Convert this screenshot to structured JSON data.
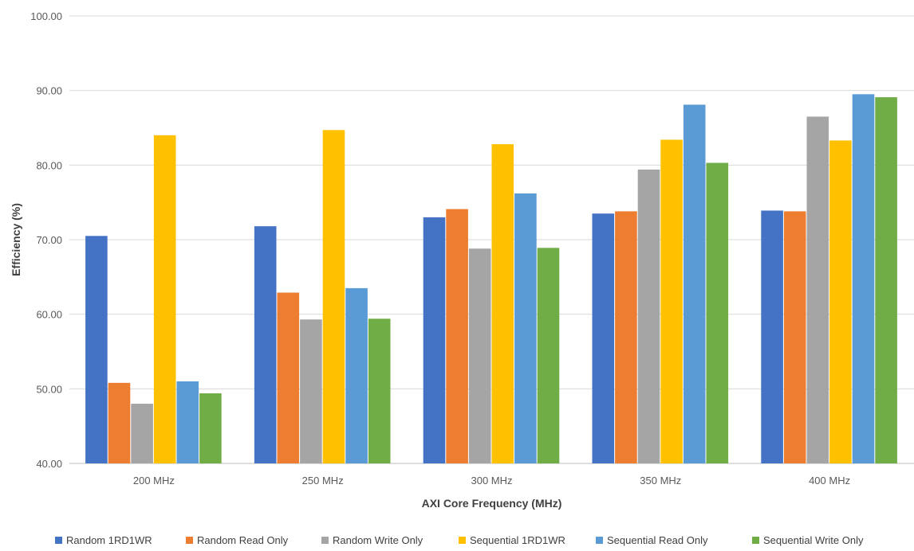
{
  "chart_data": {
    "type": "bar",
    "title": "",
    "xlabel": "AXI Core Frequency (MHz)",
    "ylabel": "Efficiency (%)",
    "ylim": [
      40,
      100
    ],
    "yticks": [
      "40.00",
      "50.00",
      "60.00",
      "70.00",
      "80.00",
      "90.00",
      "100.00"
    ],
    "grid": true,
    "legend_position": "bottom",
    "categories": [
      "200 MHz",
      "250 MHz",
      "300 MHz",
      "350 MHz",
      "400 MHz"
    ],
    "series": [
      {
        "name": "Random 1RD1WR",
        "color": "#4472c4",
        "values": [
          70.5,
          71.8,
          73.0,
          73.5,
          73.9
        ]
      },
      {
        "name": "Random Read Only",
        "color": "#ed7d31",
        "values": [
          50.8,
          62.9,
          74.1,
          73.8,
          73.8
        ]
      },
      {
        "name": "Random Write Only",
        "color": "#a5a5a5",
        "values": [
          48.0,
          59.3,
          68.8,
          79.4,
          86.5
        ]
      },
      {
        "name": "Sequential 1RD1WR",
        "color": "#ffc000",
        "values": [
          84.0,
          84.7,
          82.8,
          83.4,
          83.3
        ]
      },
      {
        "name": "Sequential Read Only",
        "color": "#5b9bd5",
        "values": [
          51.0,
          63.5,
          76.2,
          88.1,
          89.5
        ]
      },
      {
        "name": "Sequential Write Only",
        "color": "#70ad47",
        "values": [
          49.4,
          59.4,
          68.9,
          80.3,
          89.1
        ]
      }
    ]
  }
}
